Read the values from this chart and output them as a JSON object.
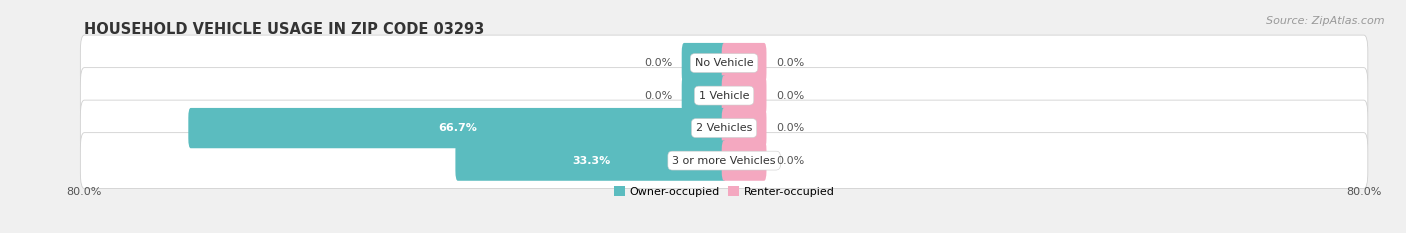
{
  "title": "HOUSEHOLD VEHICLE USAGE IN ZIP CODE 03293",
  "source": "Source: ZipAtlas.com",
  "categories": [
    "No Vehicle",
    "1 Vehicle",
    "2 Vehicles",
    "3 or more Vehicles"
  ],
  "owner_values": [
    0.0,
    0.0,
    66.7,
    33.3
  ],
  "renter_values": [
    0.0,
    0.0,
    0.0,
    0.0
  ],
  "owner_color": "#5bbcbf",
  "renter_color": "#f4a8c0",
  "bg_color": "#f0f0f0",
  "row_bg_color": "#e8e8e8",
  "xlim_left": -80,
  "xlim_right": 80,
  "bar_height": 0.72,
  "min_stub": 5.0,
  "title_fontsize": 10.5,
  "source_fontsize": 8,
  "label_fontsize": 8,
  "category_fontsize": 8,
  "legend_fontsize": 8,
  "tick_fontsize": 8
}
